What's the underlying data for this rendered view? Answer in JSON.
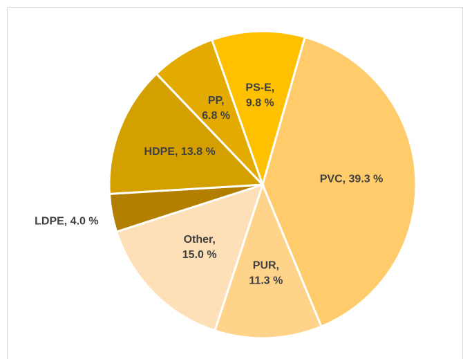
{
  "chart_data": {
    "type": "pie",
    "labels": [
      [
        "PVC, 39.3 %"
      ],
      [
        "PUR,",
        "11.3 %"
      ],
      [
        "Other,",
        "15.0 %"
      ],
      [
        "LDPE, 4.0 %"
      ],
      [
        "HDPE, 13.8 %"
      ],
      [
        "PP,",
        "6.8 %"
      ],
      [
        "PS-E,",
        "9.8 %"
      ]
    ],
    "values": [
      39.3,
      11.3,
      15.0,
      4.0,
      13.8,
      6.8,
      9.8
    ],
    "colors": [
      "#ffcb6b",
      "#ffd38a",
      "#fde0b8",
      "#b27f00",
      "#d4a000",
      "#e3aa00",
      "#ffc000"
    ]
  }
}
